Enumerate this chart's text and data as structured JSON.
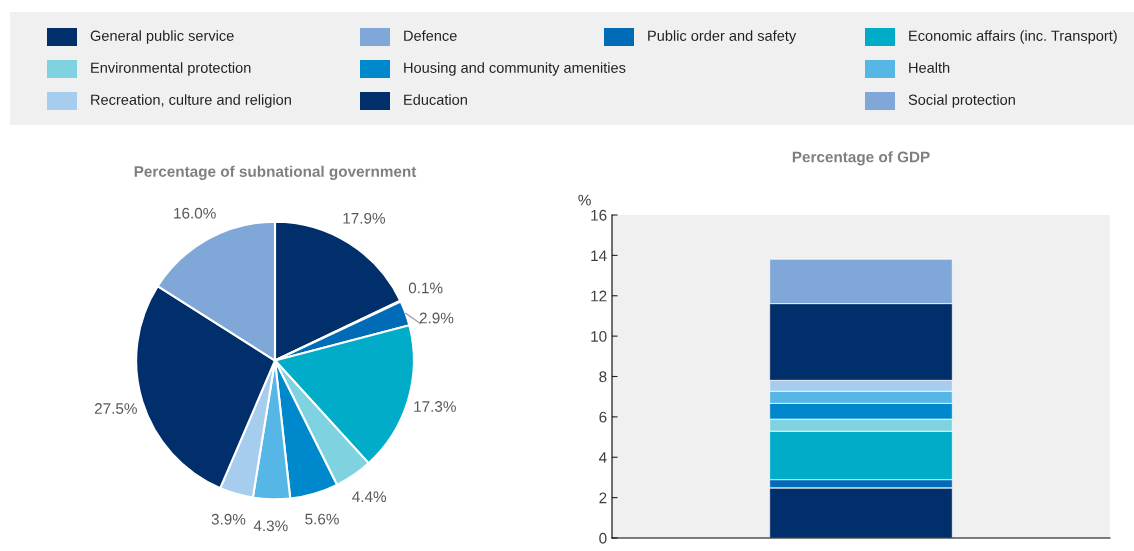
{
  "chart_data": [
    {
      "type": "pie",
      "title": "Percentage of subnational government",
      "legend": "top",
      "value_labels": [
        "17.9%",
        "0.1%",
        "2.9%",
        "17.3%",
        "4.4%",
        "5.6%",
        "4.3%",
        "3.9%",
        "27.5%",
        "16.0%"
      ],
      "categories": [
        "General public service",
        "Defence",
        "Public order and safety",
        "Economic affairs (inc. Transport)",
        "Environmental protection",
        "Housing and community amenities",
        "Health",
        "Recreation, culture and religion",
        "Education",
        "Social protection"
      ],
      "values": [
        17.9,
        0.1,
        2.9,
        17.3,
        4.4,
        5.6,
        4.3,
        3.9,
        27.5,
        16.0
      ],
      "colors": [
        "#002f6c",
        "#7fa8d9",
        "#006bb6",
        "#00acc8",
        "#7fd3e0",
        "#0088cc",
        "#56b7e6",
        "#a6ccee",
        "#002f6c",
        "#7fa8d9"
      ]
    },
    {
      "type": "bar",
      "title": "Percentage of GDP",
      "stacked": true,
      "ylabel": "%",
      "ylim": [
        0,
        16
      ],
      "yticks": [
        0,
        2,
        4,
        6,
        8,
        10,
        12,
        14,
        16
      ],
      "categories": [
        null
      ],
      "series": [
        {
          "color": "#002f6c",
          "values": [
            2.48
          ]
        },
        {
          "color": "#7fa8d9",
          "values": [
            0.01
          ]
        },
        {
          "color": "#006bb6",
          "values": [
            0.4
          ]
        },
        {
          "color": "#00acc8",
          "values": [
            2.4
          ]
        },
        {
          "color": "#7fd3e0",
          "values": [
            0.6
          ]
        },
        {
          "color": "#0088cc",
          "values": [
            0.78
          ]
        },
        {
          "color": "#56b7e6",
          "values": [
            0.6
          ]
        },
        {
          "color": "#a6ccee",
          "values": [
            0.54
          ]
        },
        {
          "color": "#002f6c",
          "values": [
            3.8
          ]
        },
        {
          "color": "#7fa8d9",
          "values": [
            2.2
          ]
        }
      ]
    }
  ]
}
